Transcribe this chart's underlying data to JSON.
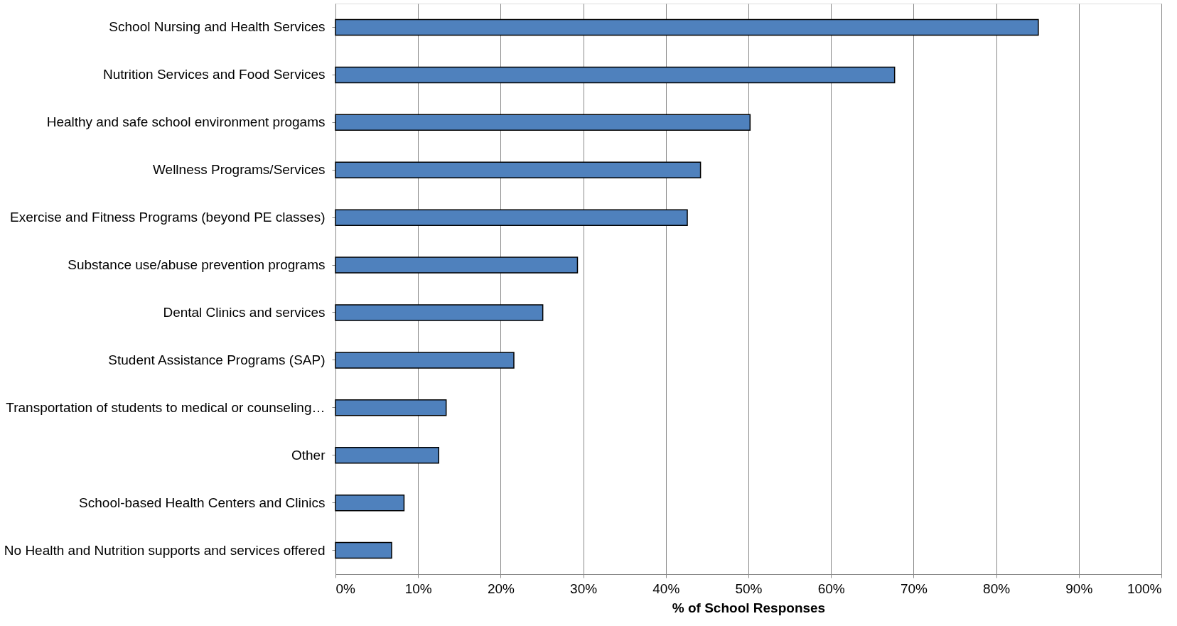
{
  "chart_data": {
    "type": "bar",
    "orientation": "horizontal",
    "xlabel": "% of School Responses",
    "categories": [
      "School Nursing and Health Services",
      "Nutrition Services and Food Services",
      "Healthy and safe school environment progams",
      "Wellness Programs/Services",
      "Exercise and Fitness Programs (beyond PE classes)",
      "Substance use/abuse prevention programs",
      "Dental Clinics and services",
      "Student Assistance Programs (SAP)",
      "Transportation of students to medical or counseling…",
      "Other",
      "School-based Health Centers and Clinics",
      "No Health and Nutrition supports and services offered"
    ],
    "values": [
      85.1,
      67.7,
      50.2,
      44.2,
      42.6,
      29.3,
      25.1,
      21.6,
      13.4,
      12.5,
      8.3,
      6.8
    ],
    "color": "#4f81bd",
    "xlim": [
      0,
      100
    ],
    "xticks": [
      {
        "value": 0,
        "label": "0%"
      },
      {
        "value": 10,
        "label": "10%"
      },
      {
        "value": 20,
        "label": "20%"
      },
      {
        "value": 30,
        "label": "30%"
      },
      {
        "value": 40,
        "label": "40%"
      },
      {
        "value": 50,
        "label": "50%"
      },
      {
        "value": 60,
        "label": "60%"
      },
      {
        "value": 70,
        "label": "70%"
      },
      {
        "value": 80,
        "label": "80%"
      },
      {
        "value": 90,
        "label": "90%"
      },
      {
        "value": 100,
        "label": "100%"
      }
    ],
    "grid": "x"
  }
}
